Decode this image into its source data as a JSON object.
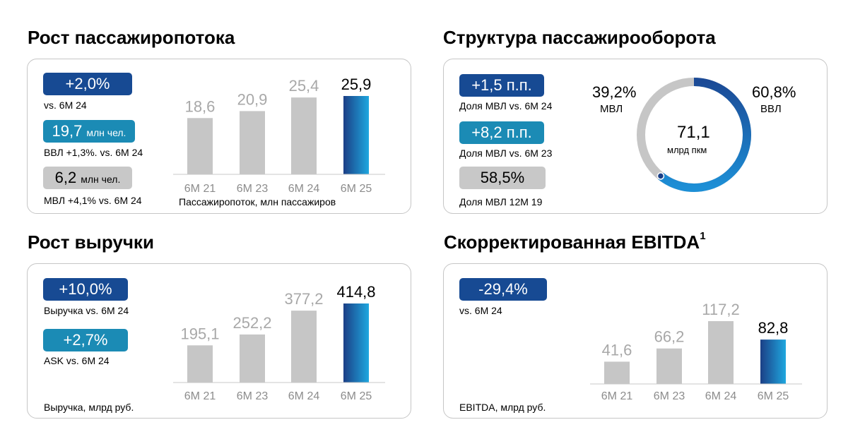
{
  "colors": {
    "bar_past": "#c6c6c6",
    "bar_current_top": "#1b3f86",
    "bar_current_bottom": "#1fa7df",
    "label_past": "#a8a8a8",
    "label_current": "#000000",
    "badge_dark": "#174a93",
    "badge_teal": "#1b8bb5",
    "badge_grey": "#c8c8c8",
    "donut_grey": "#c6c6c6",
    "donut_blue": "#1565c0"
  },
  "titles": {
    "passenger": "Рост пассажиропотока",
    "structure": "Структура пассажирооборота",
    "revenue": "Рост выручки",
    "ebitda": "Скорректированная EBITDA",
    "ebitda_sup": "1"
  },
  "passenger": {
    "badge1": "+2,0%",
    "note1": "vs. 6М 24",
    "badge2_value": "19,7",
    "badge2_unit": "млн чел.",
    "note2": "ВВЛ +1,3%. vs. 6М 24",
    "badge3_value": "6,2",
    "badge3_unit": "млн чел.",
    "note3": "МВЛ +4,1% vs. 6М 24",
    "caption": "Пассажиропоток, млн пассажиров"
  },
  "structure": {
    "badge1": "+1,5 п.п.",
    "note1": "Доля МВЛ vs. 6М 24",
    "badge2": "+8,2 п.п.",
    "note2": "Доля МВЛ vs. 6М 23",
    "badge3": "58,5%",
    "note3": "Доля МВЛ 12М 19",
    "left_pct": "39,2%",
    "left_label": "МВЛ",
    "right_pct": "60,8%",
    "right_label": "ВВЛ",
    "center_value": "71,1",
    "center_unit": "млрд пкм"
  },
  "revenue": {
    "badge1": "+10,0%",
    "note1": "Выручка vs. 6М 24",
    "badge2": "+2,7%",
    "note2": "ASK vs. 6М 24",
    "caption": "Выручка, млрд руб."
  },
  "ebitda": {
    "badge1": "-29,4%",
    "note1": "vs. 6М 24",
    "caption": "EBITDA, млрд руб."
  },
  "chart_data": [
    {
      "id": "passenger",
      "type": "bar",
      "title": "Рост пассажиропотока",
      "categories": [
        "6М 21",
        "6М 23",
        "6М 24",
        "6М 25"
      ],
      "values": [
        18.6,
        20.9,
        25.4,
        25.9
      ],
      "value_labels": [
        "18,6",
        "20,9",
        "25,4",
        "25,9"
      ],
      "ylabel": "Пассажиропоток, млн пассажиров",
      "ylim": [
        0,
        25.9
      ],
      "grid": false
    },
    {
      "id": "revenue",
      "type": "bar",
      "title": "Рост выручки",
      "categories": [
        "6М 21",
        "6М 23",
        "6М 24",
        "6М 25"
      ],
      "values": [
        195.1,
        252.2,
        377.2,
        414.8
      ],
      "value_labels": [
        "195,1",
        "252,2",
        "377,2",
        "414,8"
      ],
      "ylabel": "Выручка, млрд руб.",
      "ylim": [
        0,
        414.8
      ],
      "grid": false
    },
    {
      "id": "ebitda",
      "type": "bar",
      "title": "Скорректированная EBITDA",
      "categories": [
        "6М 21",
        "6М 23",
        "6М 24",
        "6М 25"
      ],
      "values": [
        41.6,
        66.2,
        117.2,
        82.8
      ],
      "value_labels": [
        "41,6",
        "66,2",
        "117,2",
        "82,8"
      ],
      "ylabel": "EBITDA, млрд руб.",
      "ylim": [
        0,
        117.2
      ],
      "grid": false
    },
    {
      "id": "structure",
      "type": "pie",
      "title": "Структура пассажирооборота",
      "labels": [
        "МВЛ",
        "ВВЛ"
      ],
      "values": [
        39.2,
        60.8
      ],
      "center_value": 71.1
    }
  ]
}
